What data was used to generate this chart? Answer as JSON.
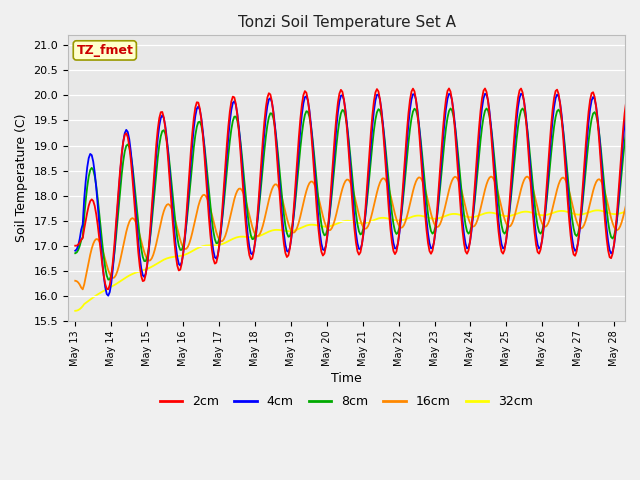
{
  "title": "Tonzi Soil Temperature Set A",
  "xlabel": "Time",
  "ylabel": "Soil Temperature (C)",
  "ylim": [
    15.5,
    21.2
  ],
  "annotation": "TZ_fmet",
  "annotation_color": "#cc0000",
  "annotation_bg": "#ffffcc",
  "annotation_edge": "#999900",
  "fig_bg": "#f0f0f0",
  "plot_bg": "#e8e8e8",
  "series": {
    "2cm": {
      "color": "#ff0000",
      "lw": 1.3
    },
    "4cm": {
      "color": "#0000ff",
      "lw": 1.3
    },
    "8cm": {
      "color": "#00aa00",
      "lw": 1.3
    },
    "16cm": {
      "color": "#ff8800",
      "lw": 1.3
    },
    "32cm": {
      "color": "#ffff00",
      "lw": 1.3
    }
  },
  "tick_labels": [
    "May 13",
    "May 14",
    "May 15",
    "May 16",
    "May 17",
    "May 18",
    "May 19",
    "May 20",
    "May 21",
    "May 22",
    "May 23",
    "May 24",
    "May 25",
    "May 26",
    "May 27",
    "May 28"
  ],
  "tick_positions": [
    0,
    1,
    2,
    3,
    4,
    5,
    6,
    7,
    8,
    9,
    10,
    11,
    12,
    13,
    14,
    15
  ],
  "yticks": [
    15.5,
    16.0,
    16.5,
    17.0,
    17.5,
    18.0,
    18.5,
    19.0,
    19.5,
    20.0,
    20.5,
    21.0
  ]
}
